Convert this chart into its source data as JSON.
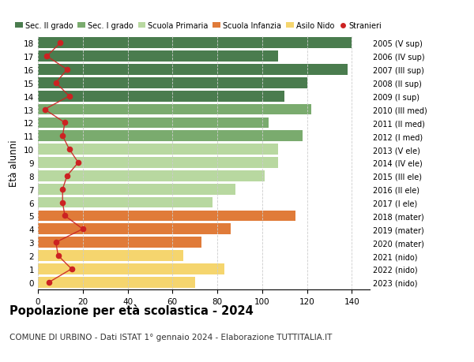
{
  "ages": [
    18,
    17,
    16,
    15,
    14,
    13,
    12,
    11,
    10,
    9,
    8,
    7,
    6,
    5,
    4,
    3,
    2,
    1,
    0
  ],
  "right_labels": [
    "2005 (V sup)",
    "2006 (IV sup)",
    "2007 (III sup)",
    "2008 (II sup)",
    "2009 (I sup)",
    "2010 (III med)",
    "2011 (II med)",
    "2012 (I med)",
    "2013 (V ele)",
    "2014 (IV ele)",
    "2015 (III ele)",
    "2016 (II ele)",
    "2017 (I ele)",
    "2018 (mater)",
    "2019 (mater)",
    "2020 (mater)",
    "2021 (nido)",
    "2022 (nido)",
    "2023 (nido)"
  ],
  "bar_values": [
    140,
    107,
    138,
    120,
    110,
    122,
    103,
    118,
    107,
    107,
    101,
    88,
    78,
    115,
    86,
    73,
    65,
    83,
    70
  ],
  "bar_colors": [
    "#4a7c4e",
    "#4a7c4e",
    "#4a7c4e",
    "#4a7c4e",
    "#4a7c4e",
    "#7aab6e",
    "#7aab6e",
    "#7aab6e",
    "#b8d8a0",
    "#b8d8a0",
    "#b8d8a0",
    "#b8d8a0",
    "#b8d8a0",
    "#e07b39",
    "#e07b39",
    "#e07b39",
    "#f5d56e",
    "#f5d56e",
    "#f5d56e"
  ],
  "stranieri_values": [
    10,
    4,
    13,
    8,
    14,
    3,
    12,
    11,
    14,
    18,
    13,
    11,
    11,
    12,
    20,
    8,
    9,
    15,
    5
  ],
  "legend_labels": [
    "Sec. II grado",
    "Sec. I grado",
    "Scuola Primaria",
    "Scuola Infanzia",
    "Asilo Nido",
    "Stranieri"
  ],
  "legend_colors": [
    "#4a7c4e",
    "#7aab6e",
    "#b8d8a0",
    "#e07b39",
    "#f5d56e",
    "#cc2222"
  ],
  "ylabel": "Età alunni",
  "title": "Popolazione per età scolastica - 2024",
  "subtitle": "COMUNE DI URBINO - Dati ISTAT 1° gennaio 2024 - Elaborazione TUTTITALIA.IT",
  "xlim": [
    0,
    148
  ],
  "background_color": "#ffffff",
  "grid_color": "#cccccc"
}
